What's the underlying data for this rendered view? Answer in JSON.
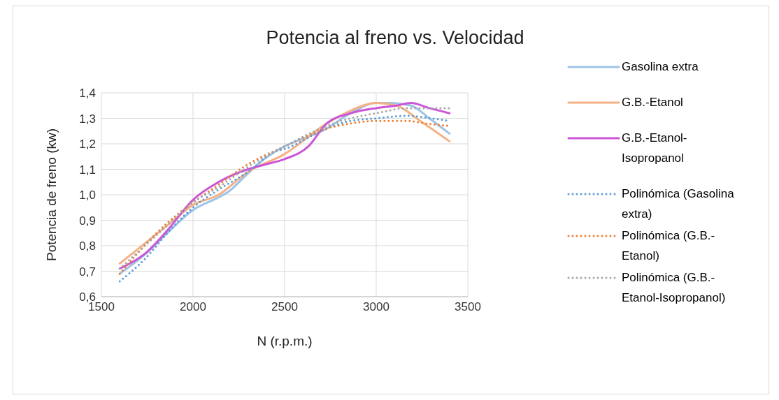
{
  "chart_data": {
    "type": "line",
    "title": "Potencia al freno vs. Velocidad",
    "xlabel": "N (r.p.m.)",
    "ylabel": "Potencia de freno (kw)",
    "xlim": [
      1500,
      3500
    ],
    "xticks": [
      1500,
      2000,
      2500,
      3000,
      3500
    ],
    "ylim": [
      0.6,
      1.4
    ],
    "yticks": [
      {
        "value": 0.6,
        "label": "0,6"
      },
      {
        "value": 0.7,
        "label": "0,7"
      },
      {
        "value": 0.8,
        "label": "0,8"
      },
      {
        "value": 0.9,
        "label": "0,9"
      },
      {
        "value": 1.0,
        "label": "1,0"
      },
      {
        "value": 1.1,
        "label": "1,1"
      },
      {
        "value": 1.2,
        "label": "1,2"
      },
      {
        "value": 1.3,
        "label": "1,3"
      },
      {
        "value": 1.4,
        "label": "1,4"
      }
    ],
    "grid": true,
    "legend": "right",
    "marker": "none",
    "series": [
      {
        "name": "Gasolina extra",
        "color": "#9dc3e6",
        "line_style": "solid",
        "x": [
          1600,
          1760,
          1860,
          2000,
          2140,
          2190,
          2280,
          2370,
          2450,
          2500,
          2730,
          2860,
          3000,
          3080,
          3190,
          3290,
          3400
        ],
        "values": [
          0.69,
          0.78,
          0.85,
          0.94,
          0.99,
          1.01,
          1.07,
          1.13,
          1.17,
          1.19,
          1.26,
          1.32,
          1.36,
          1.36,
          1.35,
          1.3,
          1.24
        ]
      },
      {
        "name": "G.B.-Etanol",
        "color": "#f4b183",
        "line_style": "solid",
        "x": [
          1600,
          1860,
          2000,
          2140,
          2300,
          2500,
          2730,
          2860,
          3000,
          3110,
          3240,
          3400
        ],
        "values": [
          0.73,
          0.88,
          0.96,
          1.0,
          1.09,
          1.16,
          1.28,
          1.33,
          1.36,
          1.35,
          1.29,
          1.21
        ]
      },
      {
        "name": "G.B.-Etanol-Isopropanol",
        "color": "#cc55d6",
        "line_style": "solid",
        "x": [
          1600,
          1740,
          1860,
          2000,
          2140,
          2300,
          2400,
          2500,
          2630,
          2730,
          2860,
          3000,
          3110,
          3190,
          3290,
          3400
        ],
        "values": [
          0.71,
          0.77,
          0.86,
          0.98,
          1.05,
          1.1,
          1.12,
          1.14,
          1.19,
          1.28,
          1.32,
          1.34,
          1.35,
          1.36,
          1.34,
          1.32
        ]
      },
      {
        "name": "Polinómica (Gasolina extra)",
        "color": "#5b9bd5",
        "line_style": "dotted",
        "x": [
          1600,
          1740,
          1860,
          2000,
          2140,
          2300,
          2450,
          2500,
          2730,
          2860,
          3000,
          3170,
          3300,
          3400
        ],
        "values": [
          0.66,
          0.75,
          0.85,
          0.95,
          1.02,
          1.09,
          1.17,
          1.18,
          1.26,
          1.29,
          1.3,
          1.31,
          1.3,
          1.29
        ]
      },
      {
        "name": "Polinómica (G.B.-Etanol)",
        "color": "#ed7d31",
        "line_style": "dotted",
        "x": [
          1600,
          1860,
          2000,
          2140,
          2300,
          2500,
          2730,
          2860,
          3000,
          3170,
          3270,
          3400
        ],
        "values": [
          0.69,
          0.89,
          0.97,
          1.04,
          1.12,
          1.19,
          1.26,
          1.28,
          1.29,
          1.29,
          1.28,
          1.27
        ]
      },
      {
        "name": "Polinómica (G.B.-Etanol-Isopropanol)",
        "color": "#a5a5a5",
        "line_style": "dotted",
        "x": [
          1600,
          1860,
          2000,
          2140,
          2300,
          2500,
          2730,
          2860,
          3000,
          3170,
          3270,
          3400
        ],
        "values": [
          0.71,
          0.88,
          0.97,
          1.03,
          1.11,
          1.19,
          1.27,
          1.3,
          1.32,
          1.34,
          1.34,
          1.34
        ]
      }
    ]
  }
}
